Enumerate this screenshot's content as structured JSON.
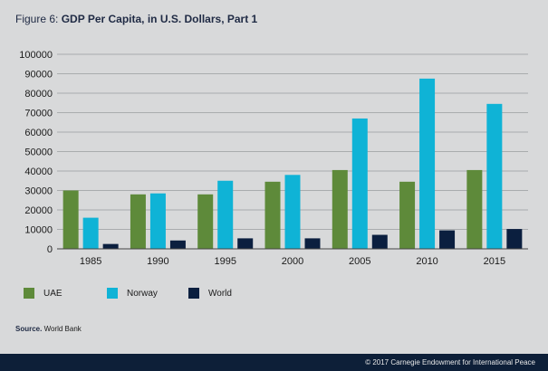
{
  "header": {
    "title_prefix": "Figure 6: ",
    "title_main": "GDP Per Capita, in U.S. Dollars, Part 1"
  },
  "chart_data": {
    "type": "bar",
    "title": "GDP Per Capita, in U.S. Dollars, Part 1",
    "categories": [
      "1985",
      "1990",
      "1995",
      "2000",
      "2005",
      "2010",
      "2015"
    ],
    "series": [
      {
        "name": "UAE",
        "color": "#5e8a3a",
        "values": [
          30000,
          28000,
          28000,
          34500,
          40500,
          34500,
          40500
        ]
      },
      {
        "name": "Norway",
        "color": "#0fb3d6",
        "values": [
          16000,
          28500,
          35000,
          38000,
          67000,
          87500,
          74500
        ]
      },
      {
        "name": "World",
        "color": "#0b1f3f",
        "values": [
          2500,
          4300,
          5400,
          5400,
          7200,
          9500,
          10200
        ]
      }
    ],
    "y_ticks": [
      "0",
      "10000",
      "20000",
      "30000",
      "40000",
      "50000",
      "60000",
      "70000",
      "80000",
      "90000",
      "100000"
    ],
    "ylim": [
      0,
      100000
    ],
    "grid": true,
    "legend_position": "bottom-left"
  },
  "source": {
    "label": "Source.",
    "text": " World Bank"
  },
  "footer": {
    "copyright": "© 2017 Carnegie Endowment for International Peace"
  }
}
